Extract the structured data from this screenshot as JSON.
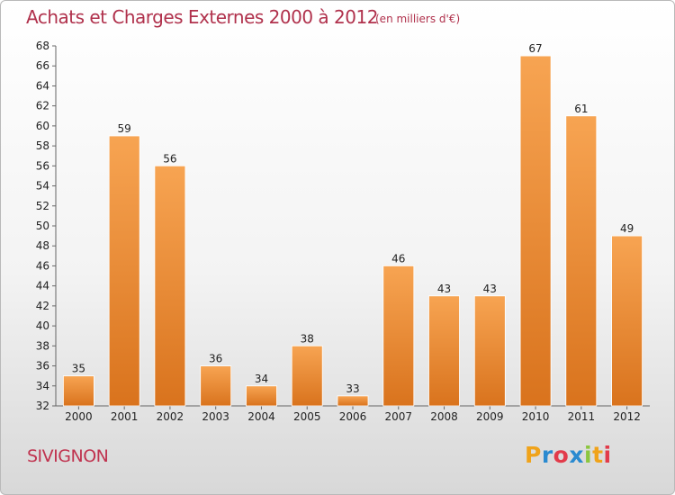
{
  "header": {
    "title": "Achats et Charges Externes 2000 à 2012",
    "subtitle": "(en milliers d'€)"
  },
  "commune": "SIVIGNON",
  "logo": {
    "letters": [
      "P",
      "r",
      "o",
      "x",
      "i",
      "t",
      "i"
    ],
    "colors": [
      "#f0a31a",
      "#2a8ad0",
      "#e23b4a",
      "#2a8ad0",
      "#8cc63f",
      "#f0a31a",
      "#e23b4a"
    ]
  },
  "chart_data": {
    "type": "bar",
    "title": "Achats et Charges Externes 2000 à 2012",
    "subtitle": "(en milliers d'€)",
    "categories": [
      "2000",
      "2001",
      "2002",
      "2003",
      "2004",
      "2005",
      "2006",
      "2007",
      "2008",
      "2009",
      "2010",
      "2011",
      "2012"
    ],
    "values": [
      35,
      59,
      56,
      36,
      34,
      38,
      33,
      46,
      43,
      43,
      67,
      61,
      49
    ],
    "ylim": [
      32,
      68
    ],
    "yticks": [
      32,
      34,
      36,
      38,
      40,
      42,
      44,
      46,
      48,
      50,
      52,
      54,
      56,
      58,
      60,
      62,
      64,
      66,
      68
    ],
    "grid": false,
    "bar_color_light": "#f7a452",
    "bar_color_dark": "#d9731d"
  }
}
